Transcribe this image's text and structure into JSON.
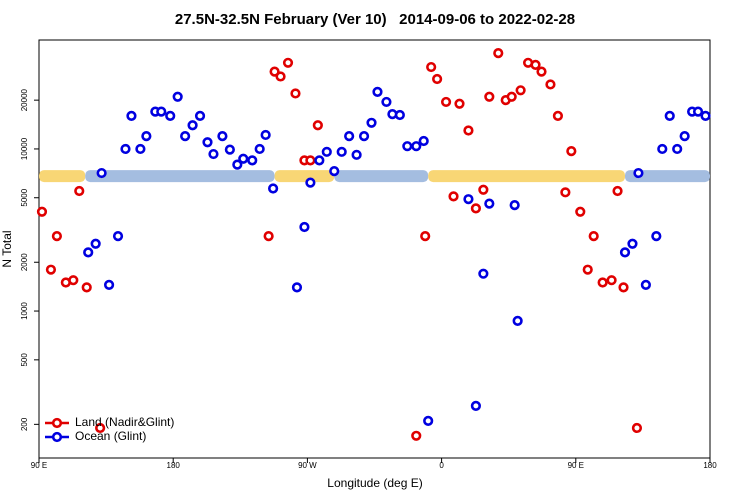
{
  "chart_data": {
    "type": "scatter",
    "title": "27.5N-32.5N February (Ver 10)   2014-09-06 to 2022-02-28",
    "x_label": "Longitude (deg E)",
    "y_label": "N Total",
    "log_y": true,
    "legend": "bottom-left",
    "xlim": [
      90,
      540
    ],
    "xticks": [
      {
        "value": 90,
        "label": "90 E"
      },
      180,
      {
        "value": 270,
        "label": "90 W"
      },
      {
        "value": 360,
        "label": "0"
      },
      {
        "value": 450,
        "label": "90 E"
      },
      {
        "value": 540,
        "label": "180"
      }
    ],
    "ylim": [
      124,
      47000
    ],
    "yticks": [
      200,
      500,
      1000,
      2000,
      5000,
      10000,
      20000
    ],
    "band": {
      "value": 6800,
      "segments": [
        {
          "x": [
            90,
            121
          ],
          "color": "#f8d675"
        },
        {
          "x": [
            121,
            248
          ],
          "color": "#a4bde0"
        },
        {
          "x": [
            248,
            288
          ],
          "color": "#f8d675"
        },
        {
          "x": [
            288,
            351
          ],
          "color": "#a4bde0"
        },
        {
          "x": [
            351,
            483
          ],
          "color": "#f8d675"
        },
        {
          "x": [
            483,
            540
          ],
          "color": "#a4bde0"
        }
      ]
    },
    "series": [
      {
        "name": "Land (Nadir&Glint)",
        "color": "#e00000",
        "x": [
          92,
          98,
          102,
          108,
          113,
          117,
          122,
          131,
          244,
          248,
          252,
          257,
          262,
          268,
          272,
          277,
          343,
          349,
          353,
          357,
          363,
          368,
          372,
          378,
          383,
          388,
          392,
          398,
          403,
          407,
          413,
          418,
          423,
          427,
          433,
          438,
          443,
          447,
          453,
          458,
          462,
          468,
          474,
          478,
          482,
          491
        ],
        "values": [
          4100,
          1800,
          2900,
          1500,
          1550,
          5500,
          1400,
          190,
          2900,
          30000,
          28000,
          34000,
          22000,
          8500,
          8500,
          14000,
          170,
          2900,
          32000,
          27000,
          19500,
          5100,
          19000,
          13000,
          4300,
          5600,
          21000,
          39000,
          20000,
          21000,
          23000,
          34000,
          33000,
          30000,
          25000,
          16000,
          5400,
          9700,
          4100,
          1800,
          2900,
          1500,
          1550,
          5500,
          1400,
          190
        ]
      },
      {
        "name": "Ocean (Glint)",
        "color": "#0000e0",
        "x": [
          123,
          128,
          132,
          137,
          143,
          148,
          152,
          158,
          162,
          168,
          172,
          178,
          183,
          188,
          193,
          198,
          203,
          207,
          213,
          218,
          223,
          227,
          233,
          238,
          242,
          247,
          263,
          268,
          272,
          278,
          283,
          288,
          293,
          298,
          303,
          308,
          313,
          317,
          323,
          327,
          332,
          337,
          343,
          348,
          351,
          378,
          383,
          388,
          392,
          409,
          411,
          483,
          488,
          492,
          497,
          504,
          508,
          513,
          518,
          523,
          528,
          532,
          537
        ],
        "values": [
          2300,
          2600,
          7100,
          1450,
          2900,
          10000,
          16000,
          10000,
          12000,
          17000,
          17000,
          16000,
          21000,
          12000,
          14000,
          16000,
          11000,
          9300,
          12000,
          9900,
          8000,
          8700,
          8500,
          10000,
          12200,
          5700,
          1400,
          3300,
          6200,
          8500,
          9600,
          7300,
          9600,
          12000,
          9200,
          12000,
          14500,
          22500,
          19500,
          16400,
          16200,
          10400,
          10400,
          11200,
          210,
          4900,
          260,
          1700,
          4600,
          4500,
          870,
          2300,
          2600,
          7100,
          1450,
          2900,
          10000,
          16000,
          10000,
          12000,
          17000,
          17000,
          16000
        ]
      }
    ]
  }
}
